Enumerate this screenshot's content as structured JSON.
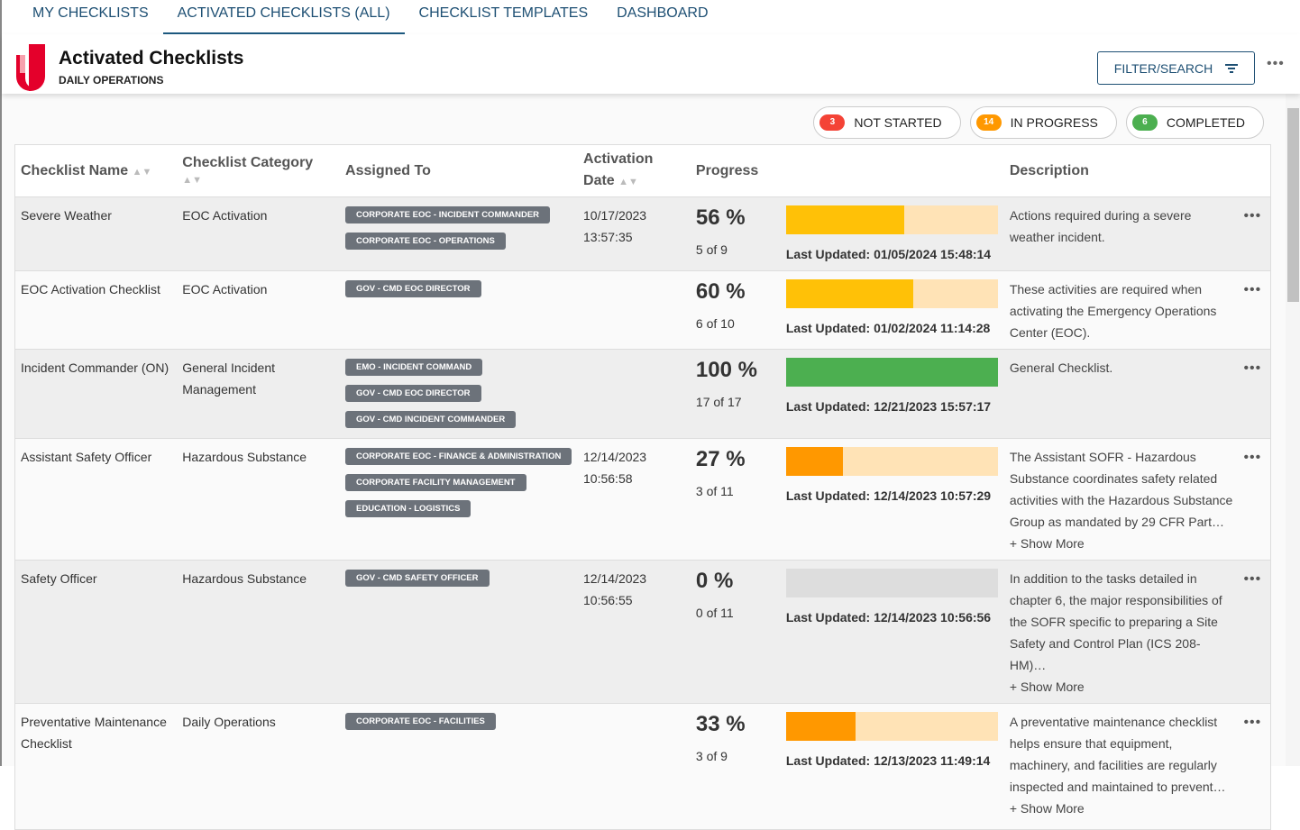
{
  "tabs": [
    {
      "label": "MY CHECKLISTS"
    },
    {
      "label": "ACTIVATED CHECKLISTS (ALL)",
      "active": true
    },
    {
      "label": "CHECKLIST TEMPLATES"
    },
    {
      "label": "DASHBOARD"
    }
  ],
  "header": {
    "title": "Activated Checklists",
    "subtitle": "DAILY OPERATIONS",
    "filter_label": "FILTER/SEARCH",
    "more": "•••"
  },
  "status": [
    {
      "count": "3",
      "label": "NOT STARTED",
      "color": "#f44336"
    },
    {
      "count": "14",
      "label": "IN PROGRESS",
      "color": "#ff9800"
    },
    {
      "count": "6",
      "label": "COMPLETED",
      "color": "#4caf50"
    }
  ],
  "columns": {
    "name": "Checklist Name",
    "category": "Checklist Category",
    "assigned": "Assigned To",
    "date": "Activation Date",
    "progress": "Progress",
    "description": "Description"
  },
  "rows": [
    {
      "name": "Severe Weather",
      "category": "EOC Activation",
      "assigned": [
        "CORPORATE EOC - INCIDENT COMMANDER",
        "CORPORATE EOC - OPERATIONS"
      ],
      "date": "10/17/2023",
      "time": "13:57:35",
      "percent": 56,
      "percent_label": "56 %",
      "count": "5 of 9",
      "updated": "Last Updated: 01/05/2024 15:48:14",
      "bar_color": "#ffc107",
      "description": "Actions required during a severe weather incident.",
      "show_more": ""
    },
    {
      "name": "EOC Activation Checklist",
      "category": "EOC Activation",
      "assigned": [
        "GOV - CMD EOC DIRECTOR"
      ],
      "date": "",
      "time": "",
      "percent": 60,
      "percent_label": "60 %",
      "count": "6 of 10",
      "updated": "Last Updated: 01/02/2024 11:14:28",
      "bar_color": "#ffc107",
      "description": "These activities are required when activating the Emergency Operations Center (EOC).",
      "show_more": ""
    },
    {
      "name": "Incident Commander (ON)",
      "category": "General Incident Management",
      "assigned": [
        "EMO - INCIDENT COMMAND",
        "GOV - CMD EOC DIRECTOR",
        "GOV - CMD INCIDENT COMMANDER"
      ],
      "date": "",
      "time": "",
      "percent": 100,
      "percent_label": "100 %",
      "count": "17 of 17",
      "updated": "Last Updated: 12/21/2023 15:57:17",
      "bar_color": "#4caf50",
      "description": "General Checklist.",
      "show_more": ""
    },
    {
      "name": "Assistant Safety Officer",
      "category": "Hazardous Substance",
      "assigned": [
        "CORPORATE EOC - FINANCE & ADMINISTRATION",
        "CORPORATE FACILITY MANAGEMENT",
        "EDUCATION - LOGISTICS"
      ],
      "date": "12/14/2023",
      "time": "10:56:58",
      "percent": 27,
      "percent_label": "27 %",
      "count": "3 of 11",
      "updated": "Last Updated: 12/14/2023 10:57:29",
      "bar_color": "#ff9800",
      "description": "The Assistant SOFR - Hazardous Substance coordinates safety related activities with the Hazardous Substance Group as mandated by 29 CFR Part…",
      "show_more": "+ Show More"
    },
    {
      "name": "Safety Officer",
      "category": "Hazardous Substance",
      "assigned": [
        "GOV - CMD SAFETY OFFICER"
      ],
      "date": "12/14/2023",
      "time": "10:56:55",
      "percent": 0,
      "percent_label": "0 %",
      "count": "0 of 11",
      "updated": "Last Updated: 12/14/2023 10:56:56",
      "bar_color": "#ff9800",
      "description": "In addition to the tasks detailed in chapter 6, the major responsibilities of the SOFR specific to preparing a Site Safety and Control Plan (ICS 208-HM)…",
      "show_more": "+ Show More"
    },
    {
      "name": "Preventative Maintenance Checklist",
      "category": "Daily Operations",
      "assigned": [
        "CORPORATE EOC - FACILITIES"
      ],
      "date": "",
      "time": "",
      "percent": 33,
      "percent_label": "33 %",
      "count": "3 of 9",
      "updated": "Last Updated: 12/13/2023 11:49:14",
      "bar_color": "#ff9800",
      "description": "A preventative maintenance checklist helps ensure that equipment, machinery, and facilities are regularly inspected and maintained to prevent…",
      "show_more": "+ Show More"
    }
  ],
  "row_menu": "•••"
}
